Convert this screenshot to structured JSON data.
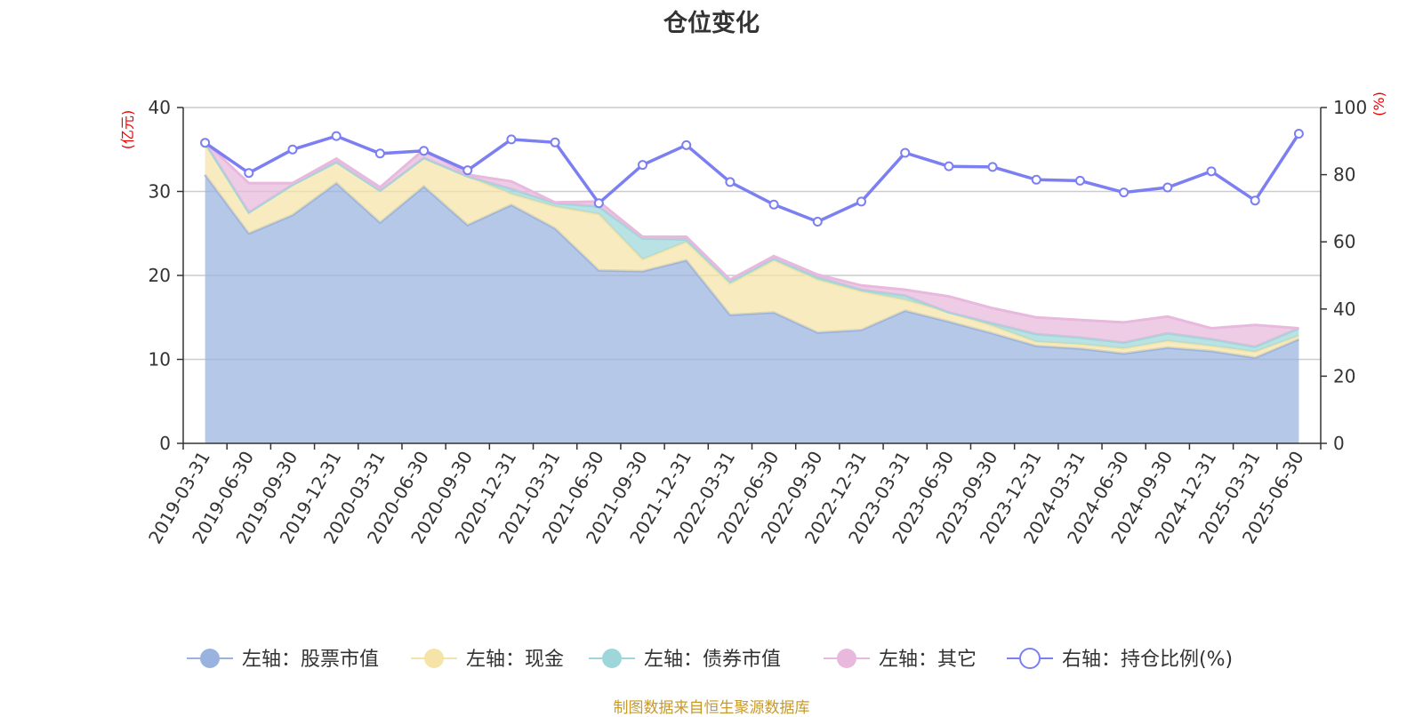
{
  "chart_data": {
    "type": "area",
    "title": "仓位变化",
    "x": [
      "2019-03-31",
      "2019-06-30",
      "2019-09-30",
      "2019-12-31",
      "2020-03-31",
      "2020-06-30",
      "2020-09-30",
      "2020-12-31",
      "2021-03-31",
      "2021-06-30",
      "2021-09-30",
      "2021-12-31",
      "2022-03-31",
      "2022-06-30",
      "2022-09-30",
      "2022-12-31",
      "2023-03-31",
      "2023-06-30",
      "2023-09-30",
      "2023-12-31",
      "2024-03-31",
      "2024-06-30",
      "2024-09-30",
      "2024-12-31",
      "2025-03-31",
      "2025-06-30"
    ],
    "left_axis": {
      "unit_label": "(亿元)",
      "ylim": [
        0,
        40
      ],
      "ticks": [
        0,
        10,
        20,
        30,
        40
      ]
    },
    "right_axis": {
      "unit_label": "(%)",
      "ylim": [
        0,
        100
      ],
      "ticks": [
        0,
        20,
        40,
        60,
        80,
        100
      ]
    },
    "series": [
      {
        "name": "左轴：股票市值",
        "axis": "left",
        "type": "stacked-area",
        "color": "#9ab3de",
        "values": [
          32.0,
          25.0,
          27.2,
          31.0,
          26.3,
          30.6,
          26.0,
          28.4,
          25.6,
          20.6,
          20.5,
          21.8,
          15.3,
          15.6,
          13.2,
          13.5,
          15.8,
          14.5,
          13.1,
          11.6,
          11.3,
          10.7,
          11.4,
          11.0,
          10.2,
          12.4
        ]
      },
      {
        "name": "左轴：现金",
        "axis": "left",
        "type": "stacked-area",
        "color": "#f5e3a8",
        "values": [
          3.8,
          2.5,
          3.6,
          2.5,
          3.8,
          3.4,
          5.8,
          1.3,
          2.6,
          6.7,
          1.4,
          2.2,
          3.7,
          6.2,
          6.3,
          4.6,
          1.3,
          1.1,
          0.9,
          0.5,
          0.5,
          0.6,
          0.8,
          0.6,
          0.7,
          0.4
        ]
      },
      {
        "name": "左轴：债券市值",
        "axis": "left",
        "type": "stacked-area",
        "color": "#9ed7d9",
        "values": [
          0,
          0,
          0,
          0,
          0,
          0,
          0,
          0.6,
          0.4,
          0.9,
          2.5,
          0.3,
          0.3,
          0.2,
          0.3,
          0.2,
          0.5,
          0,
          0.3,
          0.9,
          0.8,
          0.7,
          0.9,
          0.8,
          0.6,
          0.9
        ]
      },
      {
        "name": "左轴：其它",
        "axis": "left",
        "type": "stacked-area",
        "color": "#e8b9dd",
        "values": [
          0.1,
          3.5,
          0.2,
          0.4,
          0.4,
          1.0,
          0.2,
          0.9,
          0.1,
          0.6,
          0.2,
          0.3,
          0.2,
          0.3,
          0.3,
          0.5,
          0.7,
          1.9,
          1.8,
          2.0,
          2.1,
          2.4,
          2.0,
          1.3,
          2.6,
          0.0
        ]
      },
      {
        "name": "右轴：持仓比例(%)",
        "axis": "right",
        "type": "line",
        "color": "#7b7ff2",
        "values": [
          89.5,
          80.5,
          87.5,
          91.5,
          86.3,
          87.1,
          81.3,
          90.5,
          89.6,
          71.5,
          82.9,
          88.8,
          77.8,
          71.1,
          66.0,
          72.0,
          86.5,
          82.5,
          82.3,
          78.5,
          78.2,
          74.7,
          76.2,
          81.0,
          72.3,
          92.2
        ]
      }
    ]
  },
  "footer": "制图数据来自恒生聚源数据库"
}
